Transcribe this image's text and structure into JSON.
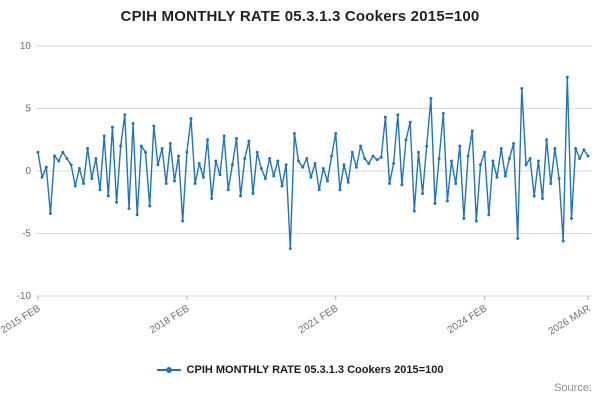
{
  "page": {
    "title": "CPIH MONTHLY RATE 05.3.1.3 Cookers 2015=100",
    "legend_label": "CPIH MONTHLY RATE 05.3.1.3 Cookers 2015=100",
    "source_label": "Source:"
  },
  "chart_data": {
    "type": "line",
    "title": "CPIH MONTHLY RATE 05.3.1.3 Cookers 2015=100",
    "xlabel": "",
    "ylabel": "",
    "ylim": [
      -10,
      10
    ],
    "grid": true,
    "legend_position": "bottom",
    "line_color": "#2073bc",
    "grid_color": "#d9d9d9",
    "tick_text_color": "#707070",
    "x_start": "2015 FEB",
    "x_frequency": "monthly",
    "yticks": [
      10,
      5,
      0,
      -5,
      -10
    ],
    "xticks": [
      {
        "index": 0,
        "label": "2015 FEB"
      },
      {
        "index": 36,
        "label": "2018 FEB"
      },
      {
        "index": 72,
        "label": "2021 FEB"
      },
      {
        "index": 108,
        "label": "2024 FEB"
      },
      {
        "index": 133,
        "label": "2026 MAR"
      }
    ],
    "series": [
      {
        "name": "CPIH MONTHLY RATE 05.3.1.3 Cookers 2015=100",
        "values": [
          1.5,
          -0.5,
          0.3,
          -3.4,
          1.2,
          0.8,
          1.5,
          1.0,
          0.5,
          -1.2,
          0.2,
          -1.0,
          1.8,
          -0.6,
          1.0,
          -1.5,
          2.8,
          -2.0,
          3.5,
          -2.5,
          2.0,
          4.5,
          -3.0,
          3.8,
          -3.5,
          2.0,
          1.5,
          -2.8,
          3.6,
          0.5,
          1.8,
          -1.0,
          2.2,
          -0.8,
          1.2,
          -4.0,
          1.5,
          4.2,
          -1.0,
          0.6,
          -0.5,
          2.5,
          -2.2,
          0.8,
          -0.3,
          2.8,
          -1.5,
          0.5,
          2.6,
          -2.0,
          1.0,
          2.4,
          -1.8,
          1.5,
          0.2,
          -0.6,
          1.0,
          -0.4,
          0.8,
          -1.2,
          0.5,
          -6.2,
          3.0,
          0.8,
          0.3,
          1.0,
          -0.5,
          0.6,
          -1.5,
          0.2,
          -0.8,
          1.2,
          3.0,
          -1.5,
          0.5,
          -0.9,
          1.5,
          0.3,
          2.0,
          1.0,
          0.6,
          1.2,
          0.9,
          1.1,
          4.3,
          -1.0,
          0.6,
          4.5,
          -1.1,
          2.5,
          3.9,
          -3.2,
          1.5,
          -1.8,
          2.0,
          5.8,
          -2.6,
          1.0,
          4.6,
          -2.4,
          0.8,
          -1.0,
          2.0,
          -3.8,
          1.2,
          3.2,
          -4.0,
          0.5,
          1.5,
          -3.5,
          0.8,
          -0.5,
          1.8,
          -0.4,
          1.0,
          2.2,
          -5.4,
          6.6,
          0.5,
          1.0,
          -2.0,
          0.8,
          -2.2,
          2.5,
          -1.0,
          1.8,
          -0.6,
          -5.6,
          7.5,
          -3.8,
          1.8,
          1.0,
          1.7,
          1.2
        ]
      }
    ]
  }
}
